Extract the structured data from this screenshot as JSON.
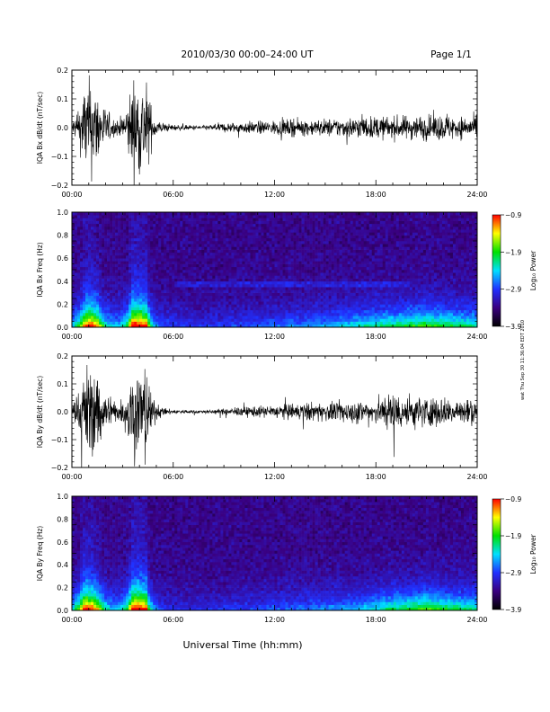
{
  "header": {
    "title": "2010/03/30  00:00–24:00 UT",
    "page": "Page 1/1"
  },
  "xlabel": "Universal Time (hh:mm)",
  "side_stamp": "wat Thu Sep 30 11:36:04 EDT 2010",
  "colorbar": {
    "label": "Log₁₀ Power",
    "ticks": [
      "−0.9",
      "−1.9",
      "−2.9",
      "−3.9"
    ],
    "range": [
      -3.9,
      -0.9
    ],
    "colors": [
      "#000000",
      "#3a0080",
      "#2030ff",
      "#00e0ff",
      "#00e000",
      "#ffff00",
      "#ff0000"
    ]
  },
  "chart_data": [
    {
      "type": "line",
      "ylabel": "IQA Bx dB/dt (nT/sec)",
      "xlim": [
        "00:00",
        "24:00"
      ],
      "ylim": [
        -0.2,
        0.2
      ],
      "x_ticks": [
        "00:00",
        "06:00",
        "12:00",
        "18:00",
        "24:00"
      ],
      "y_ticks": [
        "0.2",
        "0.1",
        "0.0",
        "−0.1",
        "−0.2"
      ],
      "envelope": {
        "hours": [
          0,
          0.4,
          0.8,
          1.2,
          1.6,
          2.0,
          2.4,
          2.8,
          3.2,
          3.6,
          4.0,
          4.4,
          4.8,
          5.2,
          5.6,
          6.0,
          7.0,
          8.0,
          9.0,
          10.0,
          11.0,
          12.0,
          13.0,
          14.0,
          15.0,
          16.0,
          17.0,
          18.0,
          19.0,
          20.0,
          21.0,
          22.0,
          23.0,
          24.0
        ],
        "amplitude": [
          0.05,
          0.09,
          0.3,
          0.3,
          0.22,
          0.12,
          0.06,
          0.05,
          0.12,
          0.3,
          0.3,
          0.3,
          0.08,
          0.04,
          0.025,
          0.02,
          0.015,
          0.015,
          0.03,
          0.035,
          0.04,
          0.045,
          0.05,
          0.05,
          0.055,
          0.06,
          0.07,
          0.07,
          0.07,
          0.075,
          0.08,
          0.08,
          0.07,
          0.07
        ]
      }
    },
    {
      "type": "heatmap",
      "ylabel": "IQA Bx Freq (Hz)",
      "xlim": [
        "00:00",
        "24:00"
      ],
      "ylim": [
        0.0,
        1.0
      ],
      "x_ticks": [
        "00:00",
        "06:00",
        "12:00",
        "18:00",
        "24:00"
      ],
      "y_ticks": [
        "1.0",
        "0.8",
        "0.6",
        "0.4",
        "0.2",
        "0.0"
      ],
      "activity": {
        "hours": [
          0,
          0.4,
          0.8,
          1.2,
          1.6,
          2.0,
          2.4,
          2.8,
          3.2,
          3.6,
          4.0,
          4.4,
          4.8,
          5.2,
          5.6,
          6.0,
          7.0,
          8.0,
          9.0,
          10.0,
          11.0,
          12.0,
          13.0,
          14.0,
          15.0,
          16.0,
          17.0,
          18.0,
          19.0,
          20.0,
          21.0,
          22.0,
          23.0,
          24.0
        ],
        "level": [
          0.3,
          0.55,
          0.8,
          0.8,
          0.7,
          0.45,
          0.35,
          0.35,
          0.5,
          0.85,
          0.85,
          0.8,
          0.35,
          0.25,
          0.2,
          0.18,
          0.16,
          0.16,
          0.18,
          0.2,
          0.22,
          0.24,
          0.26,
          0.28,
          0.32,
          0.36,
          0.42,
          0.46,
          0.5,
          0.55,
          0.6,
          0.55,
          0.5,
          0.45
        ]
      },
      "band_hz": 0.38
    },
    {
      "type": "line",
      "ylabel": "IQA By dB/dt (nT/sec)",
      "xlim": [
        "00:00",
        "24:00"
      ],
      "ylim": [
        -0.2,
        0.2
      ],
      "x_ticks": [
        "00:00",
        "06:00",
        "12:00",
        "18:00",
        "24:00"
      ],
      "y_ticks": [
        "0.2",
        "0.1",
        "0.0",
        "−0.1",
        "−0.2"
      ],
      "envelope": {
        "hours": [
          0,
          0.4,
          0.8,
          1.2,
          1.6,
          2.0,
          2.4,
          2.8,
          3.2,
          3.6,
          4.0,
          4.4,
          4.8,
          5.2,
          5.6,
          6.0,
          7.0,
          8.0,
          9.0,
          10.0,
          11.0,
          12.0,
          13.0,
          14.0,
          15.0,
          16.0,
          17.0,
          18.0,
          19.0,
          20.0,
          21.0,
          22.0,
          23.0,
          24.0
        ],
        "amplitude": [
          0.06,
          0.12,
          0.3,
          0.3,
          0.25,
          0.13,
          0.07,
          0.06,
          0.14,
          0.3,
          0.3,
          0.3,
          0.08,
          0.04,
          0.02,
          0.015,
          0.012,
          0.012,
          0.02,
          0.03,
          0.035,
          0.045,
          0.05,
          0.06,
          0.06,
          0.065,
          0.075,
          0.08,
          0.13,
          0.11,
          0.1,
          0.09,
          0.085,
          0.08
        ]
      }
    },
    {
      "type": "heatmap",
      "ylabel": "IQA By Freq (Hz)",
      "xlim": [
        "00:00",
        "24:00"
      ],
      "ylim": [
        0.0,
        1.0
      ],
      "x_ticks": [
        "00:00",
        "06:00",
        "12:00",
        "18:00",
        "24:00"
      ],
      "y_ticks": [
        "1.0",
        "0.8",
        "0.6",
        "0.4",
        "0.2",
        "0.0"
      ],
      "activity": {
        "hours": [
          0,
          0.4,
          0.8,
          1.2,
          1.6,
          2.0,
          2.4,
          2.8,
          3.2,
          3.6,
          4.0,
          4.4,
          4.8,
          5.2,
          5.6,
          6.0,
          7.0,
          8.0,
          9.0,
          10.0,
          11.0,
          12.0,
          13.0,
          14.0,
          15.0,
          16.0,
          17.0,
          18.0,
          19.0,
          20.0,
          21.0,
          22.0,
          23.0,
          24.0
        ],
        "level": [
          0.35,
          0.6,
          0.85,
          0.8,
          0.7,
          0.45,
          0.35,
          0.35,
          0.5,
          0.85,
          0.85,
          0.8,
          0.3,
          0.2,
          0.15,
          0.14,
          0.13,
          0.14,
          0.16,
          0.18,
          0.2,
          0.22,
          0.24,
          0.26,
          0.28,
          0.3,
          0.34,
          0.4,
          0.5,
          0.55,
          0.62,
          0.55,
          0.5,
          0.45
        ]
      },
      "band_hz": null
    }
  ]
}
